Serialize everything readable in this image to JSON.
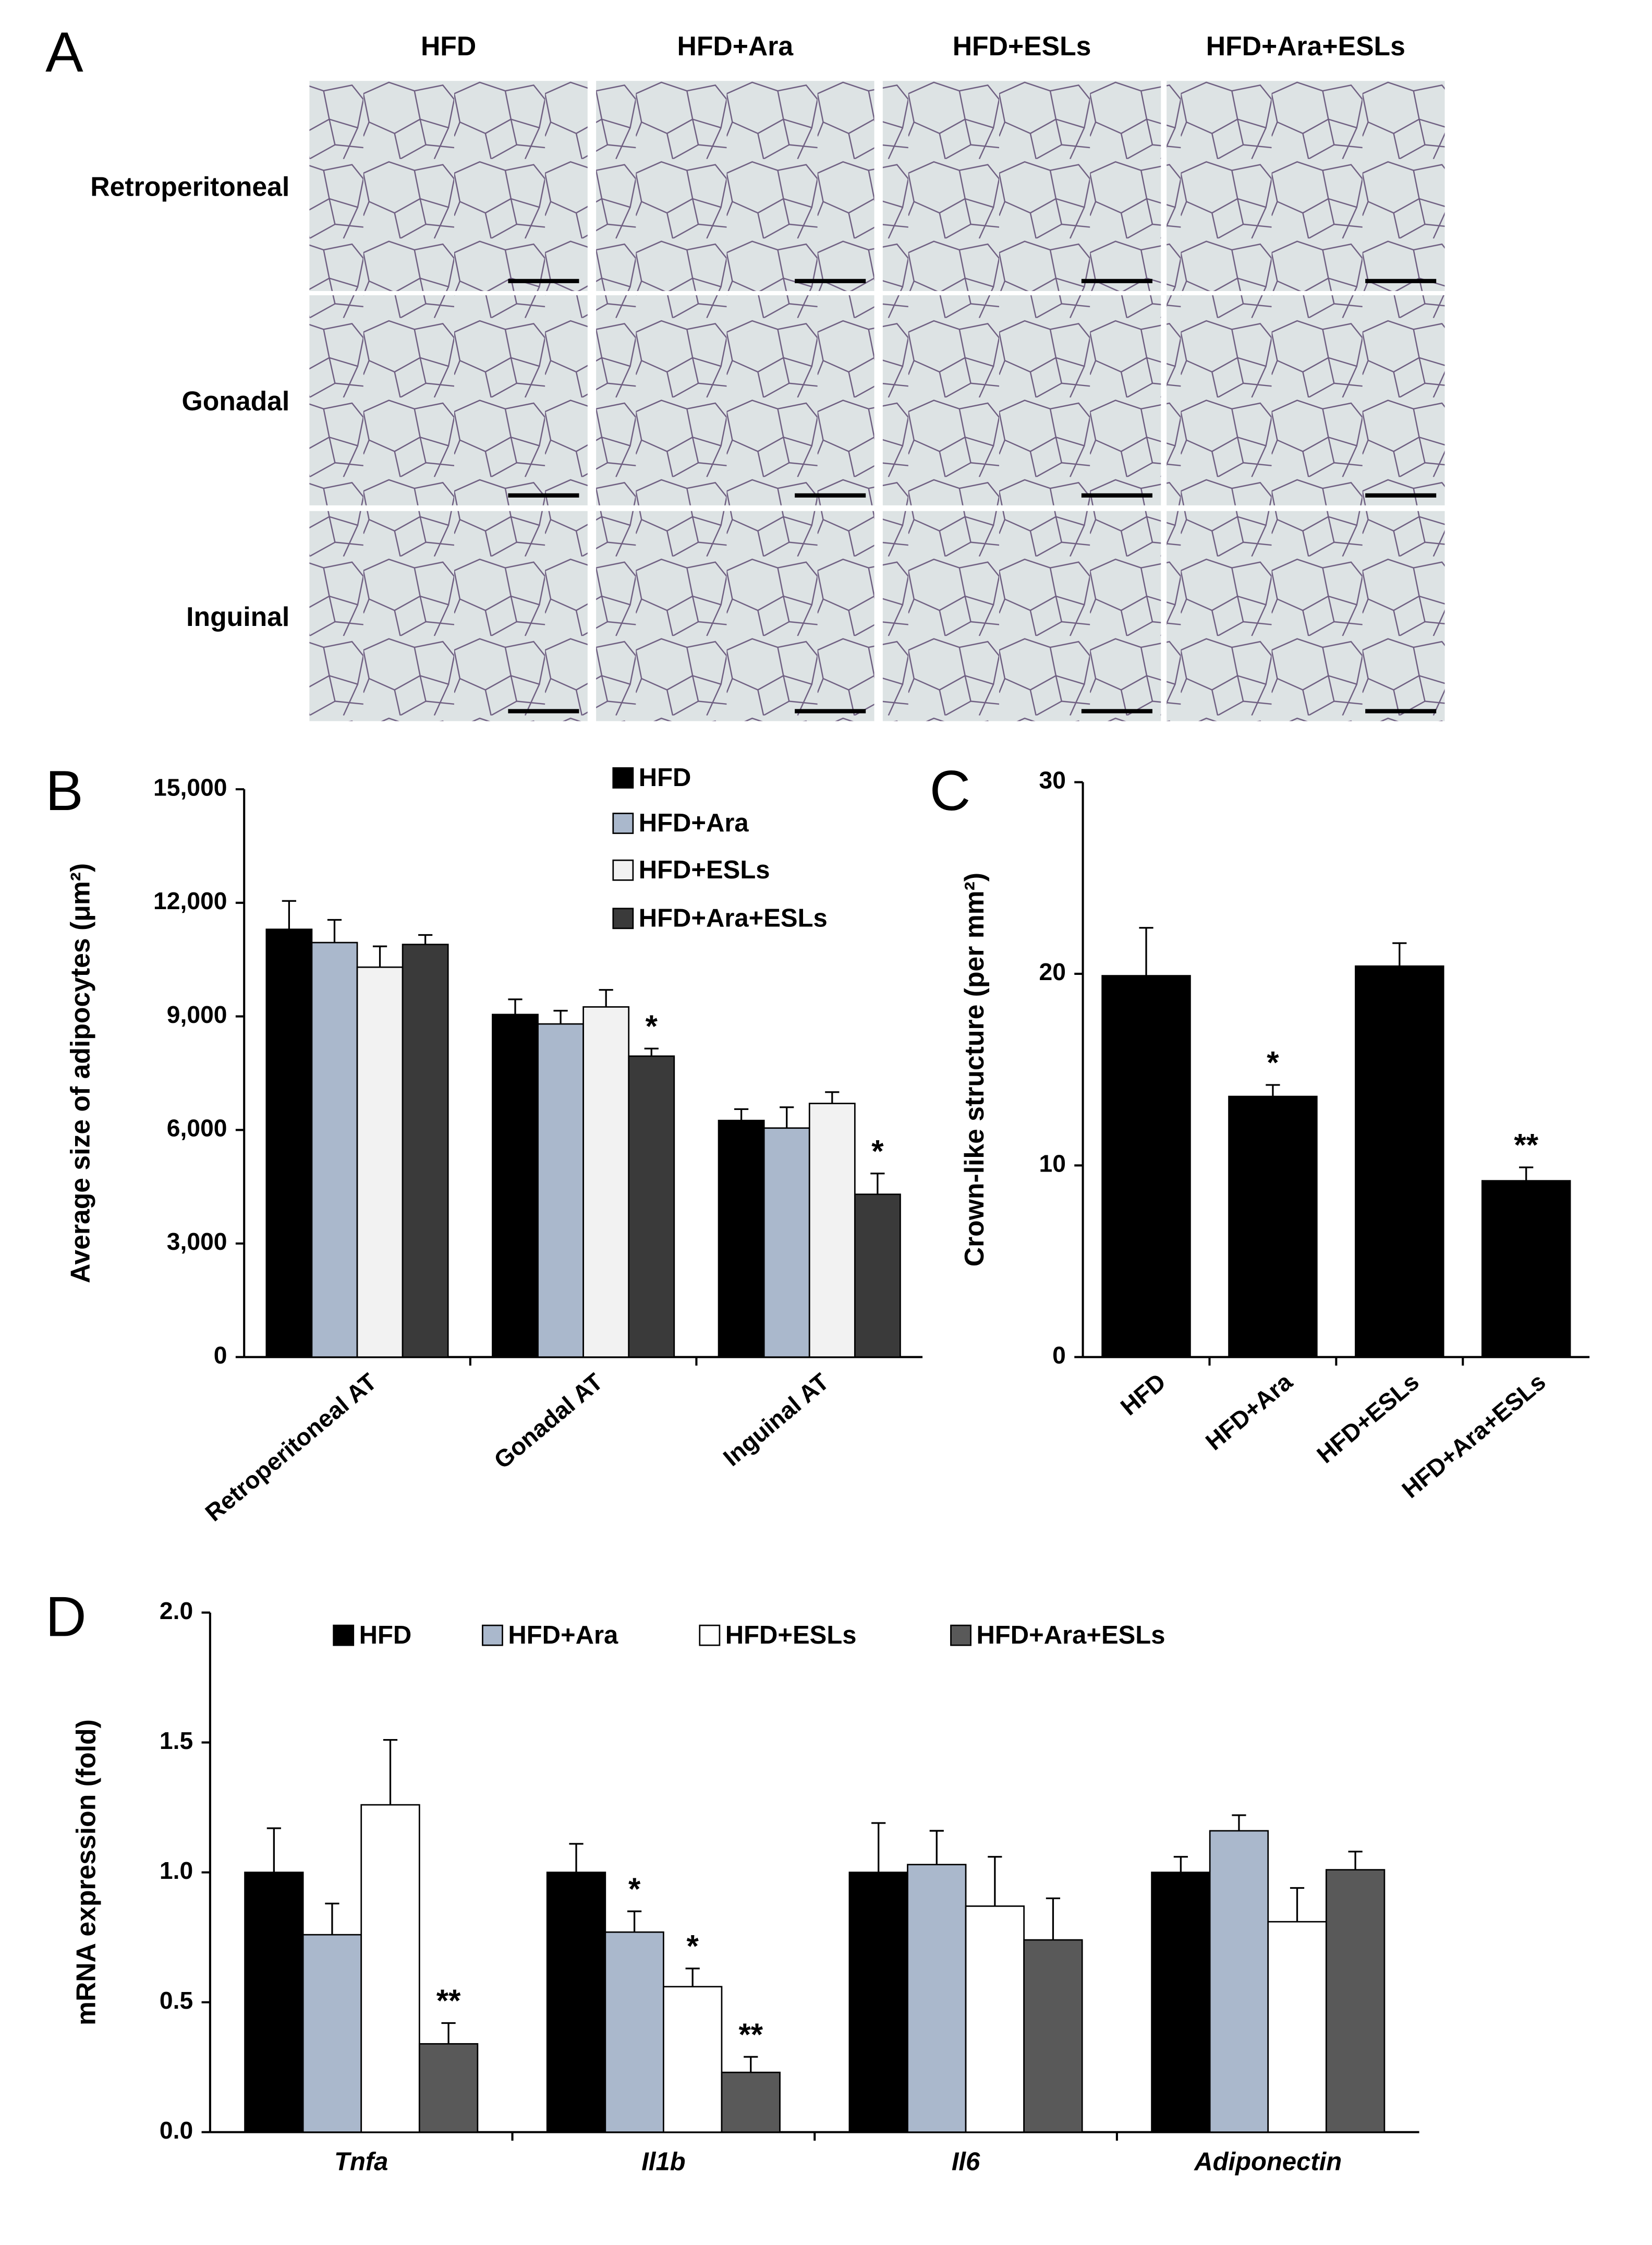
{
  "panel_a": {
    "label": "A",
    "columns": [
      "HFD",
      "HFD+Ara",
      "HFD+ESLs",
      "HFD+Ara+ESLs"
    ],
    "rows": [
      "Retroperitoneal",
      "Gonadal",
      "Inguinal"
    ]
  },
  "chart_data": [
    {
      "type": "bar",
      "panel_label": "B",
      "ylabel": "Average size of adipocytes (μm²)",
      "categories": [
        "Retroperitoneal AT",
        "Gonadal AT",
        "Inguinal AT"
      ],
      "series": [
        {
          "name": "HFD",
          "color": "#000000",
          "values": [
            11300,
            9050,
            6250
          ],
          "errors": [
            750,
            400,
            300
          ],
          "significance": [
            null,
            null,
            null
          ]
        },
        {
          "name": "HFD+Ara",
          "color": "#aab8cc",
          "values": [
            10950,
            8800,
            6050
          ],
          "errors": [
            600,
            350,
            550
          ],
          "significance": [
            null,
            null,
            null
          ]
        },
        {
          "name": "HFD+ESLs",
          "color": "#f2f2f2",
          "values": [
            10300,
            9250,
            6700
          ],
          "errors": [
            550,
            450,
            300
          ],
          "significance": [
            null,
            null,
            null
          ]
        },
        {
          "name": "HFD+Ara+ESLs",
          "color": "#3a3a3a",
          "values": [
            10900,
            7950,
            4300
          ],
          "errors": [
            250,
            200,
            550
          ],
          "significance": [
            null,
            "*",
            "*"
          ]
        }
      ],
      "ylim": [
        0,
        15000
      ],
      "yticks": [
        0,
        {
          "value": 3000,
          "label": "3,000"
        },
        {
          "value": 6000,
          "label": "6,000"
        },
        {
          "value": 9000,
          "label": "9,000"
        },
        {
          "value": 12000,
          "label": "12,000"
        },
        {
          "value": 15000,
          "label": "15,000"
        }
      ],
      "grid": false,
      "legend": "top-right"
    },
    {
      "type": "bar",
      "panel_label": "C",
      "ylabel": "Crown-like structure (per mm²)",
      "categories": [
        "HFD",
        "HFD+Ara",
        "HFD+ESLs",
        "HFD+Ara+ESLs"
      ],
      "values": [
        19.9,
        13.6,
        20.4,
        9.2
      ],
      "errors": [
        2.5,
        0.6,
        1.2,
        0.7
      ],
      "significance": [
        null,
        "*",
        null,
        "**"
      ],
      "color": "#000000",
      "ylim": [
        0,
        30
      ],
      "yticks": [
        0,
        10,
        20,
        30
      ],
      "grid": false
    },
    {
      "type": "bar",
      "panel_label": "D",
      "ylabel": "mRNA expression (fold)",
      "categories": [
        "Tnfa",
        "Il1b",
        "Il6",
        "Adiponectin"
      ],
      "series": [
        {
          "name": "HFD",
          "color": "#000000",
          "values": [
            1.0,
            1.0,
            1.0,
            1.0
          ],
          "errors": [
            0.17,
            0.11,
            0.19,
            0.06
          ],
          "significance": [
            null,
            null,
            null,
            null
          ]
        },
        {
          "name": "HFD+Ara",
          "color": "#aab8cc",
          "values": [
            0.76,
            0.77,
            1.03,
            1.16
          ],
          "errors": [
            0.12,
            0.08,
            0.13,
            0.06
          ],
          "significance": [
            null,
            "*",
            null,
            null
          ]
        },
        {
          "name": "HFD+ESLs",
          "color": "#ffffff",
          "values": [
            1.26,
            0.56,
            0.87,
            0.81
          ],
          "errors": [
            0.25,
            0.07,
            0.19,
            0.13
          ],
          "significance": [
            null,
            "*",
            null,
            null
          ]
        },
        {
          "name": "HFD+Ara+ESLs",
          "color": "#595959",
          "values": [
            0.34,
            0.23,
            0.74,
            1.01
          ],
          "errors": [
            0.08,
            0.06,
            0.16,
            0.07
          ],
          "significance": [
            "**",
            "**",
            null,
            null
          ]
        }
      ],
      "ylim": [
        0,
        2.0
      ],
      "yticks": [
        {
          "value": 0,
          "label": "0.0"
        },
        0.5,
        {
          "value": 1,
          "label": "1.0"
        },
        1.5,
        {
          "value": 2,
          "label": "2.0"
        }
      ],
      "grid": false,
      "legend": "top"
    }
  ]
}
